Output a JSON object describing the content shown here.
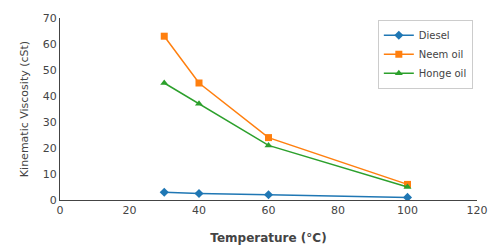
{
  "chart_data": {
    "type": "line",
    "xlabel": "Temperature (°C)",
    "ylabel": "Kinematic Viscosity (cSt)",
    "xlim": [
      0,
      120
    ],
    "ylim": [
      0,
      70
    ],
    "xticks": [
      0,
      20,
      40,
      60,
      80,
      100,
      120
    ],
    "yticks": [
      0,
      10,
      20,
      30,
      40,
      50,
      60,
      70
    ],
    "grid": false,
    "legend": "upper right",
    "series": [
      {
        "name": "Diesel",
        "x": [
          30,
          40,
          60,
          100
        ],
        "values": [
          3.0,
          2.5,
          2.0,
          1.0
        ],
        "marker": "diamond"
      },
      {
        "name": "Neem oil",
        "x": [
          30,
          40,
          60,
          100
        ],
        "values": [
          63.0,
          45.0,
          24.0,
          6.0
        ],
        "marker": "square"
      },
      {
        "name": "Honge oil",
        "x": [
          30,
          40,
          60,
          100
        ],
        "values": [
          45.0,
          37.0,
          21.0,
          5.0
        ],
        "marker": "triangle"
      }
    ]
  }
}
